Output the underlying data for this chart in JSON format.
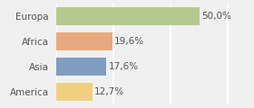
{
  "categories": [
    "Europa",
    "Africa",
    "Asia",
    "America"
  ],
  "values": [
    50.0,
    19.6,
    17.6,
    12.7
  ],
  "labels": [
    "50,0%",
    "19,6%",
    "17,6%",
    "12,7%"
  ],
  "bar_colors": [
    "#b5c98e",
    "#e8a97e",
    "#7f9dc0",
    "#f0d080"
  ],
  "background_color": "#f0f0f0",
  "xlim": [
    0,
    62
  ],
  "bar_height": 0.72,
  "label_fontsize": 7.5,
  "category_fontsize": 7.5,
  "grid_color": "#ffffff",
  "text_color": "#555555"
}
